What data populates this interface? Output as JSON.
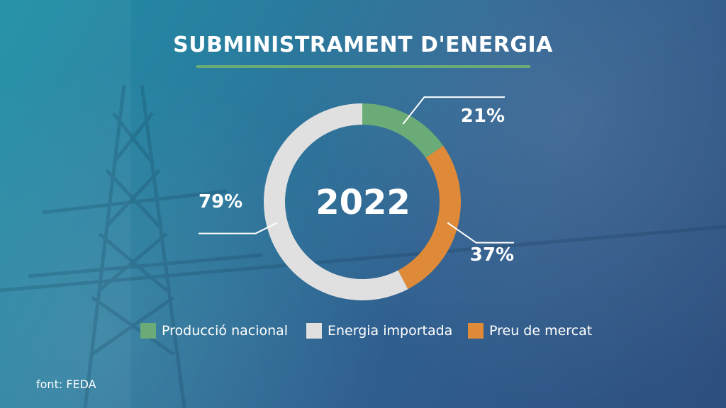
{
  "title": "SUBMINISTRAMENT D'ENERGIA",
  "source": "font: FEDA",
  "chart_data": {
    "type": "pie",
    "title": "SUBMINISTRAMENT D'ENERGIA",
    "center_label": "2022",
    "slices": [
      {
        "name": "Producció nacional",
        "value": 21,
        "label": "21%",
        "color": "#6aab77"
      },
      {
        "name": "Preu de mercat",
        "value": 37,
        "label": "37%",
        "color": "#de8a39"
      },
      {
        "name": "Energia importada",
        "value": 79,
        "label": "79%",
        "color": "#e0e0e0"
      }
    ],
    "legend_placement": "bottom"
  }
}
